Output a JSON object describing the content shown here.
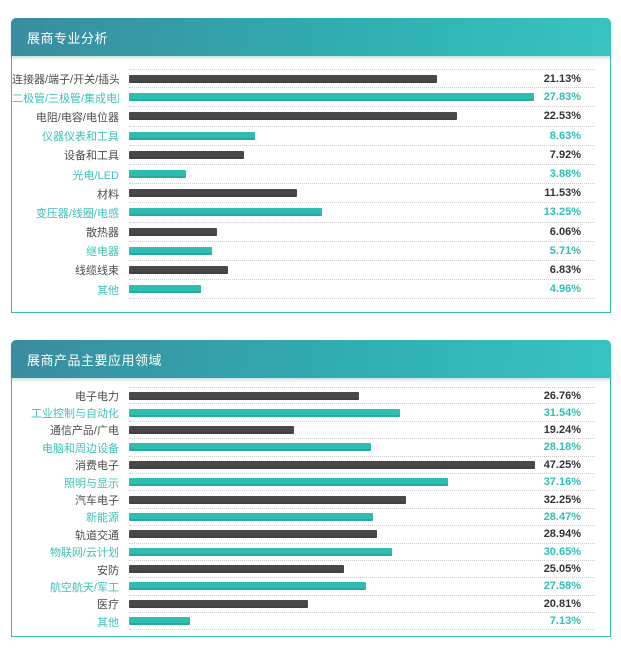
{
  "colors": {
    "teal_bar": "#2dbdb3",
    "dark_bar": "#484848",
    "teal_label": "#41c0b8",
    "teal_value": "#2fbfb6",
    "dark_value": "#333333",
    "panel_border": "#2fbdb4",
    "header_gradient_from": "#3a8c9e",
    "header_gradient_to": "#37c3c0",
    "separator": "#cccccc"
  },
  "chart_data": [
    {
      "type": "bar",
      "orientation": "horizontal",
      "title": "展商专业分析",
      "xlim": [
        0,
        32
      ],
      "scale_max": 32,
      "grid": "dotted-row-separators",
      "legend": "none",
      "items": [
        {
          "label": "连接器/端子/开关/插头",
          "value": 21.13,
          "display": "21.13%",
          "color": "dark"
        },
        {
          "label": "二极管/三极管/集成电路",
          "value": 27.83,
          "display": "27.83%",
          "color": "teal"
        },
        {
          "label": "电阻/电容/电位器",
          "value": 22.53,
          "display": "22.53%",
          "color": "dark"
        },
        {
          "label": "仪器仪表和工具",
          "value": 8.63,
          "display": "8.63%",
          "color": "teal"
        },
        {
          "label": "设备和工具",
          "value": 7.92,
          "display": "7.92%",
          "color": "dark"
        },
        {
          "label": "光电/LED",
          "value": 3.88,
          "display": "3.88%",
          "color": "teal"
        },
        {
          "label": "材料",
          "value": 11.53,
          "display": "11.53%",
          "color": "dark"
        },
        {
          "label": "变压器/线圈/电感",
          "value": 13.25,
          "display": "13.25%",
          "color": "teal"
        },
        {
          "label": "散热器",
          "value": 6.06,
          "display": "6.06%",
          "color": "dark"
        },
        {
          "label": "继电器",
          "value": 5.71,
          "display": "5.71%",
          "color": "teal"
        },
        {
          "label": "线缆线束",
          "value": 6.83,
          "display": "6.83%",
          "color": "dark"
        },
        {
          "label": "其他",
          "value": 4.96,
          "display": "4.96%",
          "color": "teal"
        }
      ]
    },
    {
      "type": "bar",
      "orientation": "horizontal",
      "title": "展商产品主要应用领域",
      "xlim": [
        0,
        54.3
      ],
      "scale_max": 54.3,
      "grid": "dotted-row-separators",
      "legend": "none",
      "items": [
        {
          "label": "电子电力",
          "value": 26.76,
          "display": "26.76%",
          "color": "dark"
        },
        {
          "label": "工业控制与自动化",
          "value": 31.54,
          "display": "31.54%",
          "color": "teal"
        },
        {
          "label": "通信产品/广电",
          "value": 19.24,
          "display": "19.24%",
          "color": "dark"
        },
        {
          "label": "电脑和周边设备",
          "value": 28.18,
          "display": "28.18%",
          "color": "teal"
        },
        {
          "label": "消费电子",
          "value": 47.25,
          "display": "47.25%",
          "color": "dark"
        },
        {
          "label": "照明与显示",
          "value": 37.16,
          "display": "37.16%",
          "color": "teal"
        },
        {
          "label": "汽车电子",
          "value": 32.25,
          "display": "32.25%",
          "color": "dark"
        },
        {
          "label": "新能源",
          "value": 28.47,
          "display": "28.47%",
          "color": "teal"
        },
        {
          "label": "轨道交通",
          "value": 28.94,
          "display": "28.94%",
          "color": "dark"
        },
        {
          "label": "物联网/云计划",
          "value": 30.65,
          "display": "30.65%",
          "color": "teal"
        },
        {
          "label": "安防",
          "value": 25.05,
          "display": "25.05%",
          "color": "dark"
        },
        {
          "label": "航空航天/军工",
          "value": 27.58,
          "display": "27.58%",
          "color": "teal"
        },
        {
          "label": "医疗",
          "value": 20.81,
          "display": "20.81%",
          "color": "dark"
        },
        {
          "label": "其他",
          "value": 7.13,
          "display": "7.13%",
          "color": "teal"
        }
      ]
    }
  ]
}
